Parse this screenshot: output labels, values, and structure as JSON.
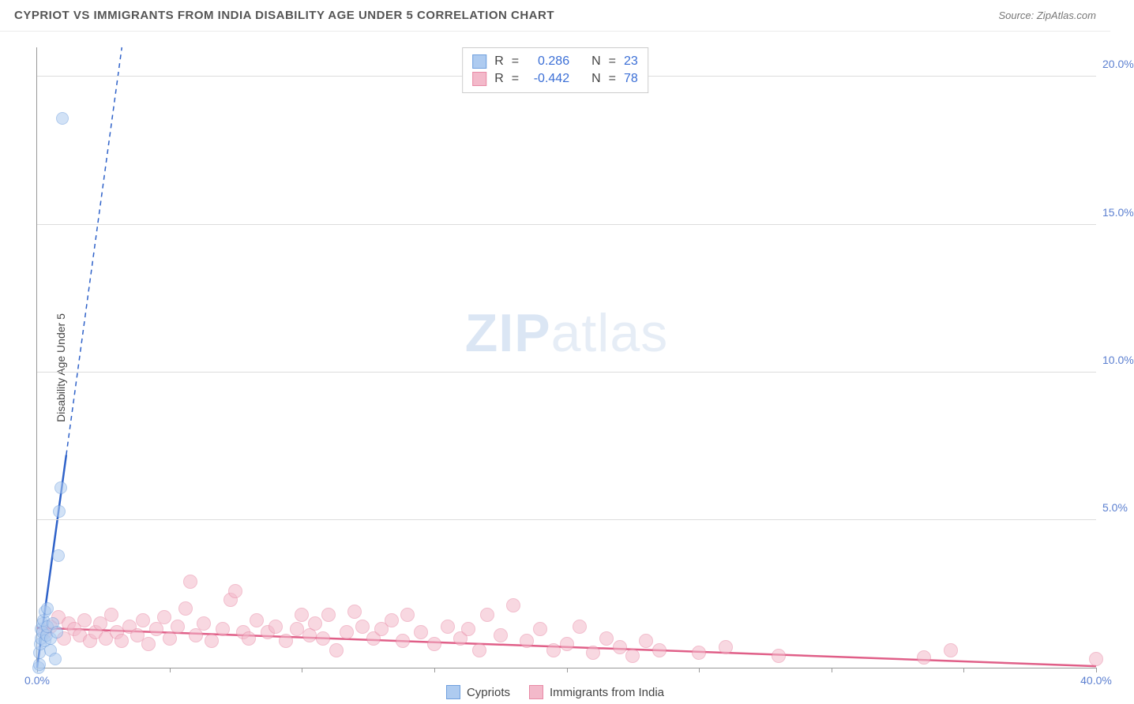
{
  "title": "CYPRIOT VS IMMIGRANTS FROM INDIA DISABILITY AGE UNDER 5 CORRELATION CHART",
  "source_prefix": "Source: ",
  "source": "ZipAtlas.com",
  "ylabel": "Disability Age Under 5",
  "watermark_zip": "ZIP",
  "watermark_atlas": "atlas",
  "axes": {
    "x_min": 0.0,
    "x_max": 40.0,
    "y_min": 0.0,
    "y_max": 21.0,
    "y_ticks": [
      5.0,
      10.0,
      15.0,
      20.0
    ],
    "y_tick_labels": [
      "5.0%",
      "10.0%",
      "15.0%",
      "20.0%"
    ],
    "x_ticks": [
      0.0,
      5.0,
      10.0,
      15.0,
      20.0,
      25.0,
      30.0,
      35.0,
      40.0
    ],
    "x_tick_labels": {
      "0": "0.0%",
      "40": "40.0%"
    },
    "grid_color": "#dddddd",
    "axis_color": "#999999",
    "tick_label_color": "#5b7fd0"
  },
  "series": {
    "cypriots": {
      "label": "Cypriots",
      "fill": "#aecbf0",
      "stroke": "#6f9fde",
      "trend_color": "#2f62c9",
      "marker_size": 16,
      "r_value": "0.286",
      "n_value": "23",
      "trend": {
        "x1": 0.0,
        "y1": 0.0,
        "x2": 1.1,
        "y2": 7.2,
        "dash_from_y": 7.2,
        "dash_to_x": 3.2,
        "dash_to_y": 21.0
      },
      "points": [
        {
          "x": 0.05,
          "y": 0.0
        },
        {
          "x": 0.1,
          "y": 0.1
        },
        {
          "x": 0.1,
          "y": 0.5
        },
        {
          "x": 0.12,
          "y": 0.8
        },
        {
          "x": 0.15,
          "y": 1.0
        },
        {
          "x": 0.15,
          "y": 1.3
        },
        {
          "x": 0.2,
          "y": 1.5
        },
        {
          "x": 0.2,
          "y": 1.2
        },
        {
          "x": 0.25,
          "y": 1.6
        },
        {
          "x": 0.3,
          "y": 0.9
        },
        {
          "x": 0.3,
          "y": 1.9
        },
        {
          "x": 0.35,
          "y": 1.1
        },
        {
          "x": 0.4,
          "y": 1.4
        },
        {
          "x": 0.4,
          "y": 2.0
        },
        {
          "x": 0.5,
          "y": 1.0
        },
        {
          "x": 0.5,
          "y": 0.6
        },
        {
          "x": 0.6,
          "y": 1.5
        },
        {
          "x": 0.7,
          "y": 0.3
        },
        {
          "x": 0.75,
          "y": 1.2
        },
        {
          "x": 0.8,
          "y": 3.8
        },
        {
          "x": 0.85,
          "y": 5.3
        },
        {
          "x": 0.9,
          "y": 6.1
        },
        {
          "x": 0.95,
          "y": 18.6
        }
      ]
    },
    "india": {
      "label": "Immigrants from India",
      "fill": "#f3b9ca",
      "stroke": "#e88aa6",
      "trend_color": "#e05f88",
      "marker_size": 18,
      "r_value": "-0.442",
      "n_value": "78",
      "trend": {
        "x1": 0.0,
        "y1": 1.35,
        "x2": 40.0,
        "y2": 0.05
      },
      "points": [
        {
          "x": 0.3,
          "y": 1.2
        },
        {
          "x": 0.5,
          "y": 1.4
        },
        {
          "x": 0.8,
          "y": 1.7
        },
        {
          "x": 1.0,
          "y": 1.0
        },
        {
          "x": 1.2,
          "y": 1.5
        },
        {
          "x": 1.4,
          "y": 1.3
        },
        {
          "x": 1.6,
          "y": 1.1
        },
        {
          "x": 1.8,
          "y": 1.6
        },
        {
          "x": 2.0,
          "y": 0.9
        },
        {
          "x": 2.2,
          "y": 1.2
        },
        {
          "x": 2.4,
          "y": 1.5
        },
        {
          "x": 2.6,
          "y": 1.0
        },
        {
          "x": 2.8,
          "y": 1.8
        },
        {
          "x": 3.0,
          "y": 1.2
        },
        {
          "x": 3.2,
          "y": 0.9
        },
        {
          "x": 3.5,
          "y": 1.4
        },
        {
          "x": 3.8,
          "y": 1.1
        },
        {
          "x": 4.0,
          "y": 1.6
        },
        {
          "x": 4.2,
          "y": 0.8
        },
        {
          "x": 4.5,
          "y": 1.3
        },
        {
          "x": 4.8,
          "y": 1.7
        },
        {
          "x": 5.0,
          "y": 1.0
        },
        {
          "x": 5.3,
          "y": 1.4
        },
        {
          "x": 5.6,
          "y": 2.0
        },
        {
          "x": 5.8,
          "y": 2.9
        },
        {
          "x": 6.0,
          "y": 1.1
        },
        {
          "x": 6.3,
          "y": 1.5
        },
        {
          "x": 6.6,
          "y": 0.9
        },
        {
          "x": 7.0,
          "y": 1.3
        },
        {
          "x": 7.3,
          "y": 2.3
        },
        {
          "x": 7.5,
          "y": 2.6
        },
        {
          "x": 7.8,
          "y": 1.2
        },
        {
          "x": 8.0,
          "y": 1.0
        },
        {
          "x": 8.3,
          "y": 1.6
        },
        {
          "x": 8.7,
          "y": 1.2
        },
        {
          "x": 9.0,
          "y": 1.4
        },
        {
          "x": 9.4,
          "y": 0.9
        },
        {
          "x": 9.8,
          "y": 1.3
        },
        {
          "x": 10.0,
          "y": 1.8
        },
        {
          "x": 10.3,
          "y": 1.1
        },
        {
          "x": 10.5,
          "y": 1.5
        },
        {
          "x": 10.8,
          "y": 1.0
        },
        {
          "x": 11.0,
          "y": 1.8
        },
        {
          "x": 11.3,
          "y": 0.6
        },
        {
          "x": 11.7,
          "y": 1.2
        },
        {
          "x": 12.0,
          "y": 1.9
        },
        {
          "x": 12.3,
          "y": 1.4
        },
        {
          "x": 12.7,
          "y": 1.0
        },
        {
          "x": 13.0,
          "y": 1.3
        },
        {
          "x": 13.4,
          "y": 1.6
        },
        {
          "x": 13.8,
          "y": 0.9
        },
        {
          "x": 14.0,
          "y": 1.8
        },
        {
          "x": 14.5,
          "y": 1.2
        },
        {
          "x": 15.0,
          "y": 0.8
        },
        {
          "x": 15.5,
          "y": 1.4
        },
        {
          "x": 16.0,
          "y": 1.0
        },
        {
          "x": 16.3,
          "y": 1.3
        },
        {
          "x": 16.7,
          "y": 0.6
        },
        {
          "x": 17.0,
          "y": 1.8
        },
        {
          "x": 17.5,
          "y": 1.1
        },
        {
          "x": 18.0,
          "y": 2.1
        },
        {
          "x": 18.5,
          "y": 0.9
        },
        {
          "x": 19.0,
          "y": 1.3
        },
        {
          "x": 19.5,
          "y": 0.6
        },
        {
          "x": 20.0,
          "y": 0.8
        },
        {
          "x": 20.5,
          "y": 1.4
        },
        {
          "x": 21.0,
          "y": 0.5
        },
        {
          "x": 21.5,
          "y": 1.0
        },
        {
          "x": 22.0,
          "y": 0.7
        },
        {
          "x": 22.5,
          "y": 0.4
        },
        {
          "x": 23.0,
          "y": 0.9
        },
        {
          "x": 23.5,
          "y": 0.6
        },
        {
          "x": 25.0,
          "y": 0.5
        },
        {
          "x": 26.0,
          "y": 0.7
        },
        {
          "x": 28.0,
          "y": 0.4
        },
        {
          "x": 33.5,
          "y": 0.35
        },
        {
          "x": 34.5,
          "y": 0.6
        },
        {
          "x": 40.0,
          "y": 0.3
        }
      ]
    }
  },
  "legend_labels": {
    "r": "R",
    "eq": "=",
    "n": "N"
  }
}
